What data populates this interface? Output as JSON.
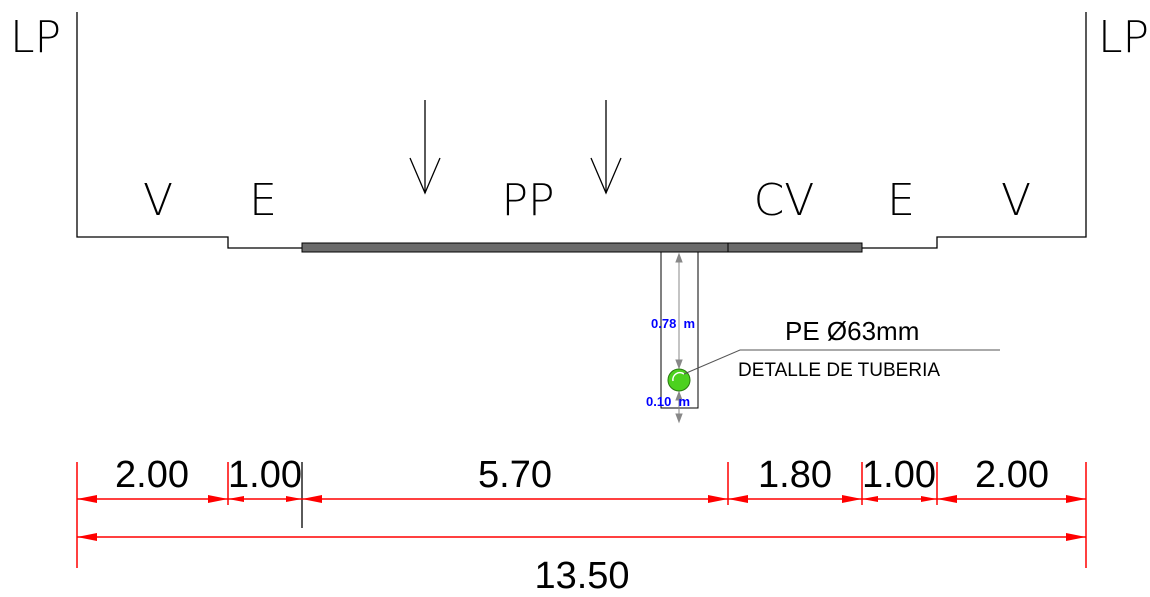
{
  "labels": {
    "lp_left": "LP",
    "lp_right": "LP",
    "zones": [
      "V",
      "E",
      "PP",
      "CV",
      "E",
      "V"
    ]
  },
  "pipe": {
    "title": "PE Ø63mm",
    "subtitle": "DETALLE DE TUBERIA",
    "depth": "0.78  m",
    "clearance": "0.10  m",
    "fill_color": "#4cd11f"
  },
  "dimensions": {
    "segments": [
      "2.00",
      "1.00",
      "5.70",
      "1.80",
      "1.00",
      "2.00"
    ],
    "total": "13.50",
    "color": "#ff0000"
  },
  "colors": {
    "outline": "#000000",
    "pavement": "#6b6b6b",
    "annotation": "#0000ff"
  }
}
